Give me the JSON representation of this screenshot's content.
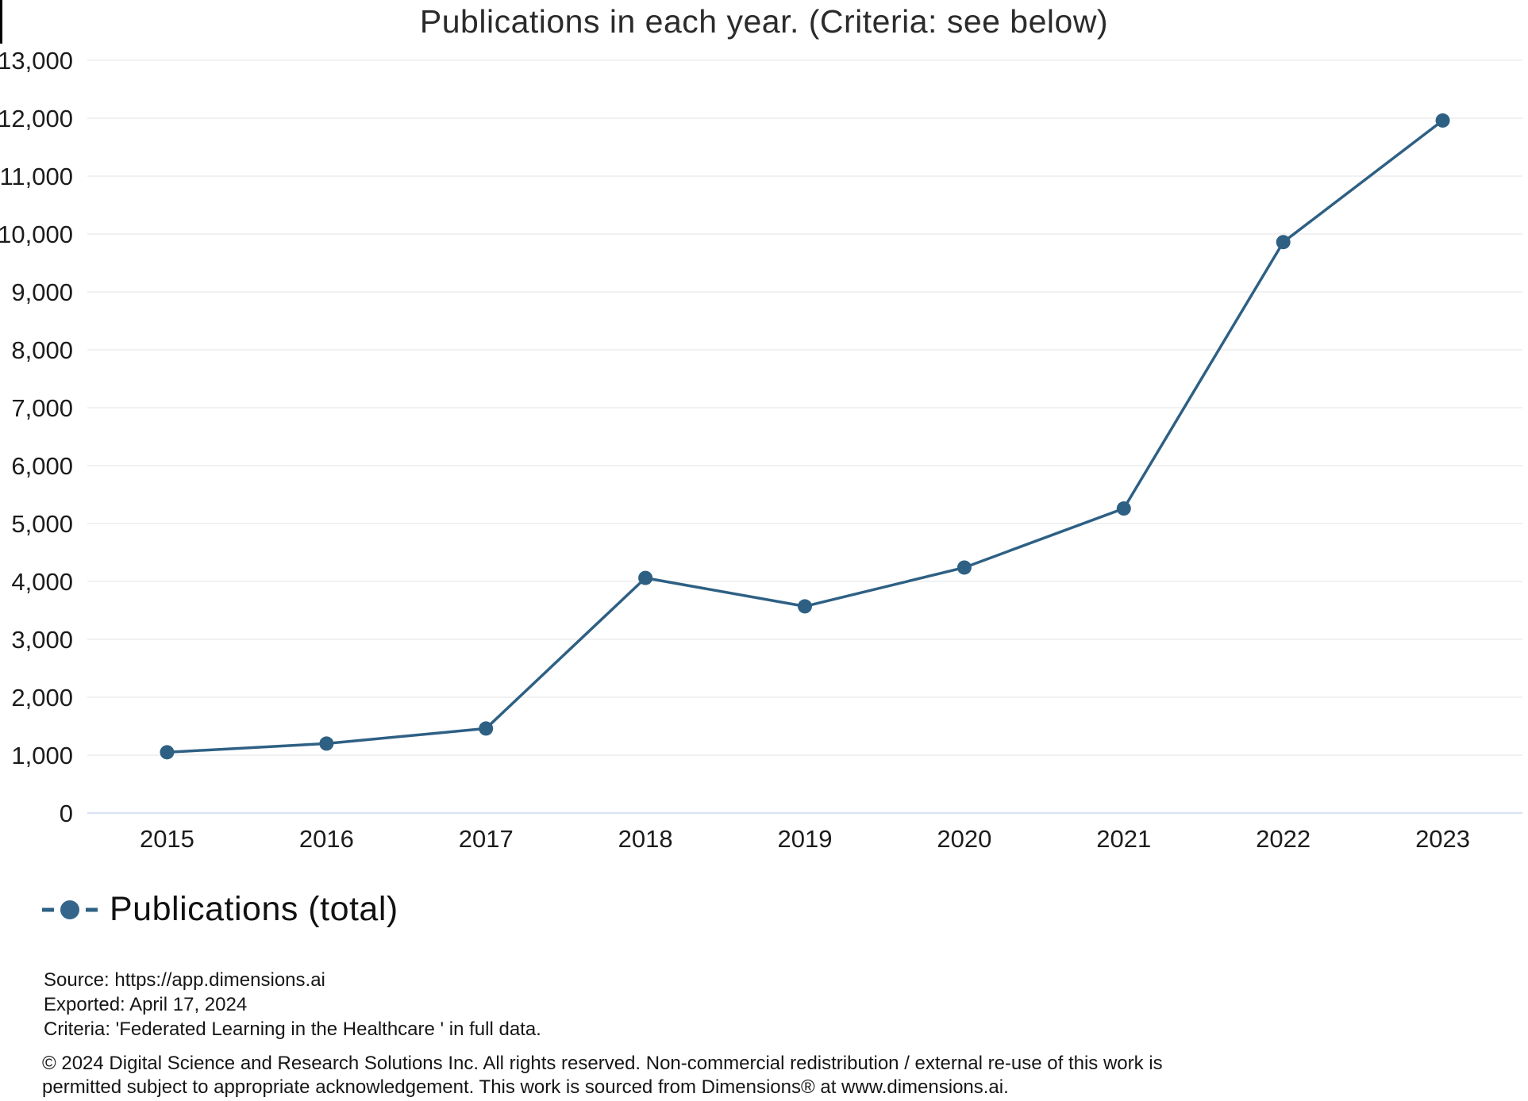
{
  "title": "Publications in each year. (Criteria: see below)",
  "colors": {
    "line": "#2e6084",
    "marker": "#2e6084",
    "grid": "#f1f1f1",
    "zero_axis": "#dbe2f2",
    "tick_text": "#1c1c1c",
    "title_text": "#2b2b2b"
  },
  "chart_data": {
    "type": "line",
    "title": "Publications in each year. (Criteria: see below)",
    "x": [
      "2015",
      "2016",
      "2017",
      "2018",
      "2019",
      "2020",
      "2021",
      "2022",
      "2023"
    ],
    "series": [
      {
        "name": "Publications (total)",
        "values": [
          1050,
          1200,
          1460,
          4060,
          3570,
          4240,
          5260,
          9860,
          11960
        ]
      }
    ],
    "xlabel": "",
    "ylabel": "",
    "ylim": [
      0,
      13000
    ],
    "y_tick_step": 1000,
    "y_tick_labels": [
      "0",
      "1,000",
      "2,000",
      "3,000",
      "4,000",
      "5,000",
      "6,000",
      "7,000",
      "8,000",
      "9,000",
      "10,000",
      "11,000",
      "12,000",
      "13,000"
    ],
    "grid": true,
    "legend_position": "bottom-left",
    "marker": "circle"
  },
  "legend": {
    "label": "Publications (total)"
  },
  "footer": {
    "source_line": "Source: https://app.dimensions.ai",
    "exported_line": "Exported: April 17, 2024",
    "criteria_line": "Criteria: 'Federated Learning in the Healthcare ' in full data.",
    "copyright_line1": "© 2024 Digital Science and Research Solutions Inc. All rights reserved. Non-commercial redistribution / external re-use of this work is",
    "copyright_line2": "permitted subject to appropriate acknowledgement. This work is sourced from Dimensions® at www.dimensions.ai."
  }
}
